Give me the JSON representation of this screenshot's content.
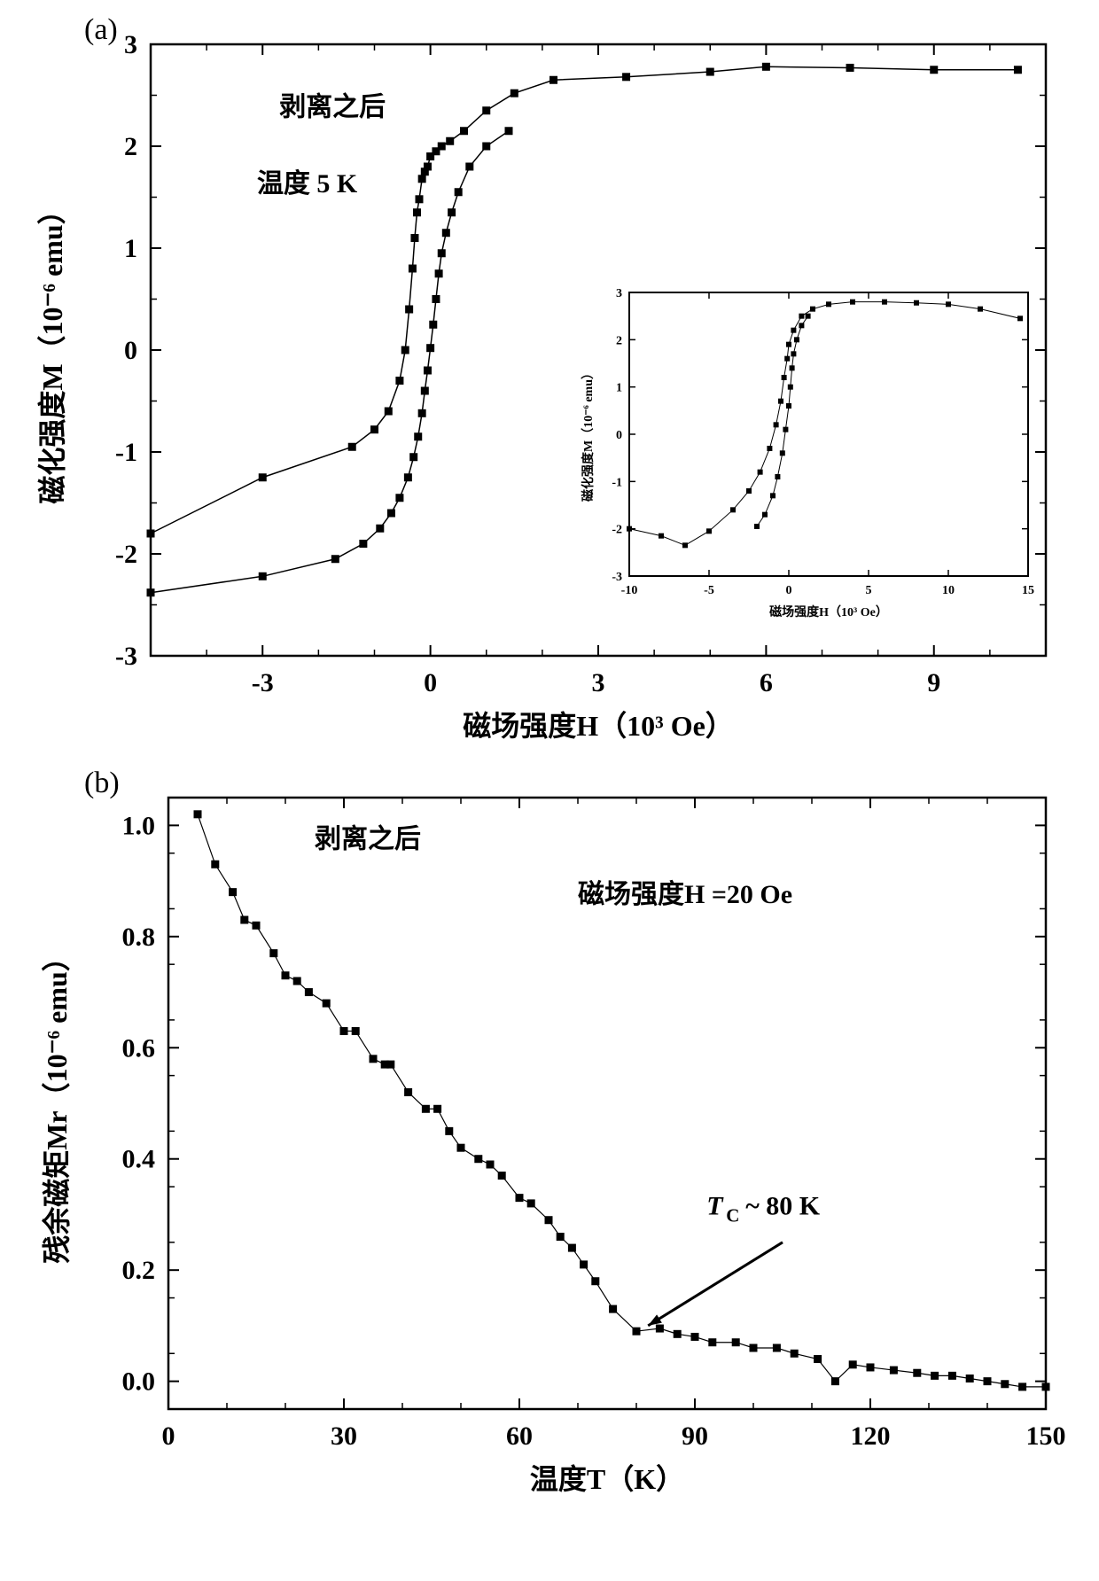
{
  "panel_a": {
    "label": "(a)",
    "type": "scatter-line",
    "xlabel": "磁场强度H（10³ Oe）",
    "ylabel": "磁化强度M（10⁻⁶ emu）",
    "label_fontsize": 32,
    "tick_fontsize": 30,
    "annotation1": "剥离之后",
    "annotation2": "温度 5 K",
    "annotation_fontsize": 30,
    "xlim": [
      -5,
      11
    ],
    "ylim": [
      -3,
      3
    ],
    "xticks": [
      -3,
      0,
      3,
      6,
      9
    ],
    "yticks": [
      -3,
      -2,
      -1,
      0,
      1,
      2,
      3
    ],
    "background_color": "#ffffff",
    "axis_color": "#000000",
    "marker_color": "#000000",
    "line_color": "#000000",
    "marker_size": 9,
    "line_width": 1.5,
    "axis_width": 2.5,
    "series": [
      {
        "name": "branch1",
        "points": [
          [
            -5,
            -1.8
          ],
          [
            -3,
            -1.25
          ],
          [
            -1.4,
            -0.95
          ],
          [
            -1.0,
            -0.78
          ],
          [
            -0.75,
            -0.6
          ],
          [
            -0.55,
            -0.3
          ],
          [
            -0.45,
            0.0
          ],
          [
            -0.38,
            0.4
          ],
          [
            -0.32,
            0.8
          ],
          [
            -0.28,
            1.1
          ],
          [
            -0.24,
            1.35
          ],
          [
            -0.2,
            1.48
          ],
          [
            -0.15,
            1.68
          ],
          [
            -0.1,
            1.75
          ],
          [
            -0.05,
            1.8
          ],
          [
            0.0,
            1.9
          ],
          [
            0.1,
            1.95
          ],
          [
            0.2,
            2.0
          ],
          [
            0.35,
            2.05
          ],
          [
            0.6,
            2.15
          ],
          [
            1.0,
            2.35
          ],
          [
            1.5,
            2.52
          ],
          [
            2.2,
            2.65
          ],
          [
            3.5,
            2.68
          ],
          [
            5.0,
            2.73
          ],
          [
            6.0,
            2.78
          ],
          [
            7.5,
            2.77
          ],
          [
            9.0,
            2.75
          ],
          [
            10.5,
            2.75
          ]
        ]
      },
      {
        "name": "branch2",
        "points": [
          [
            -5,
            -2.38
          ],
          [
            -3,
            -2.22
          ],
          [
            -1.7,
            -2.05
          ],
          [
            -1.2,
            -1.9
          ],
          [
            -0.9,
            -1.75
          ],
          [
            -0.7,
            -1.6
          ],
          [
            -0.55,
            -1.45
          ],
          [
            -0.4,
            -1.25
          ],
          [
            -0.3,
            -1.05
          ],
          [
            -0.22,
            -0.85
          ],
          [
            -0.15,
            -0.62
          ],
          [
            -0.1,
            -0.4
          ],
          [
            -0.05,
            -0.2
          ],
          [
            0.0,
            0.02
          ],
          [
            0.05,
            0.25
          ],
          [
            0.1,
            0.5
          ],
          [
            0.15,
            0.75
          ],
          [
            0.2,
            0.95
          ],
          [
            0.28,
            1.15
          ],
          [
            0.38,
            1.35
          ],
          [
            0.5,
            1.55
          ],
          [
            0.7,
            1.8
          ],
          [
            1.0,
            2.0
          ],
          [
            1.4,
            2.15
          ]
        ]
      }
    ],
    "inset": {
      "xlabel": "磁场强度H（10³ Oe）",
      "ylabel": "磁化强度M（10⁻⁶ emu）",
      "label_fontsize": 14,
      "tick_fontsize": 14,
      "xlim": [
        -10,
        15
      ],
      "ylim": [
        -3,
        3
      ],
      "xticks": [
        -10,
        -5,
        0,
        5,
        10,
        15
      ],
      "yticks": [
        -3,
        -2,
        -1,
        0,
        1,
        2,
        3
      ],
      "marker_size": 6,
      "line_width": 1,
      "axis_width": 2,
      "series": [
        {
          "name": "b1",
          "points": [
            [
              -10,
              -2.0
            ],
            [
              -8,
              -2.15
            ],
            [
              -6.5,
              -2.35
            ],
            [
              -5,
              -2.05
            ],
            [
              -3.5,
              -1.6
            ],
            [
              -2.5,
              -1.2
            ],
            [
              -1.8,
              -0.8
            ],
            [
              -1.2,
              -0.3
            ],
            [
              -0.8,
              0.2
            ],
            [
              -0.5,
              0.7
            ],
            [
              -0.3,
              1.2
            ],
            [
              -0.1,
              1.6
            ],
            [
              0.0,
              1.9
            ],
            [
              0.3,
              2.2
            ],
            [
              0.8,
              2.5
            ],
            [
              1.5,
              2.65
            ],
            [
              2.5,
              2.75
            ],
            [
              4.0,
              2.8
            ],
            [
              6.0,
              2.8
            ],
            [
              8.0,
              2.78
            ],
            [
              10.0,
              2.75
            ],
            [
              12.0,
              2.65
            ],
            [
              14.5,
              2.45
            ]
          ]
        },
        {
          "name": "b2",
          "points": [
            [
              -2.0,
              -1.95
            ],
            [
              -1.5,
              -1.7
            ],
            [
              -1.0,
              -1.3
            ],
            [
              -0.7,
              -0.9
            ],
            [
              -0.4,
              -0.4
            ],
            [
              -0.2,
              0.1
            ],
            [
              0.0,
              0.6
            ],
            [
              0.1,
              1.0
            ],
            [
              0.2,
              1.4
            ],
            [
              0.3,
              1.7
            ],
            [
              0.5,
              2.0
            ],
            [
              0.8,
              2.3
            ],
            [
              1.2,
              2.5
            ]
          ]
        }
      ]
    }
  },
  "panel_b": {
    "label": "(b)",
    "type": "scatter-line",
    "xlabel": "温度T（K）",
    "ylabel": "残余磁矩Mr（10⁻⁶ emu）",
    "label_fontsize": 32,
    "tick_fontsize": 30,
    "annotation1": "剥离之后",
    "annotation2": "磁场强度H =20 Oe",
    "annotation3": "Tc ~ 80 K",
    "annotation_fontsize": 30,
    "xlim": [
      0,
      150
    ],
    "ylim": [
      -0.05,
      1.05
    ],
    "xticks": [
      0,
      30,
      60,
      90,
      120,
      150
    ],
    "yticks": [
      0.0,
      0.2,
      0.4,
      0.6,
      0.8,
      1.0
    ],
    "background_color": "#ffffff",
    "axis_color": "#000000",
    "marker_color": "#000000",
    "line_color": "#000000",
    "marker_size": 9,
    "line_width": 1.2,
    "axis_width": 2.5,
    "arrow_from": [
      105,
      0.25
    ],
    "arrow_to": [
      82,
      0.1
    ],
    "points": [
      [
        5,
        1.02
      ],
      [
        8,
        0.93
      ],
      [
        11,
        0.88
      ],
      [
        13,
        0.83
      ],
      [
        15,
        0.82
      ],
      [
        18,
        0.77
      ],
      [
        20,
        0.73
      ],
      [
        22,
        0.72
      ],
      [
        24,
        0.7
      ],
      [
        27,
        0.68
      ],
      [
        30,
        0.63
      ],
      [
        32,
        0.63
      ],
      [
        35,
        0.58
      ],
      [
        37,
        0.57
      ],
      [
        38,
        0.57
      ],
      [
        41,
        0.52
      ],
      [
        44,
        0.49
      ],
      [
        46,
        0.49
      ],
      [
        48,
        0.45
      ],
      [
        50,
        0.42
      ],
      [
        53,
        0.4
      ],
      [
        55,
        0.39
      ],
      [
        57,
        0.37
      ],
      [
        60,
        0.33
      ],
      [
        62,
        0.32
      ],
      [
        65,
        0.29
      ],
      [
        67,
        0.26
      ],
      [
        69,
        0.24
      ],
      [
        71,
        0.21
      ],
      [
        73,
        0.18
      ],
      [
        76,
        0.13
      ],
      [
        80,
        0.09
      ],
      [
        84,
        0.095
      ],
      [
        87,
        0.085
      ],
      [
        90,
        0.08
      ],
      [
        93,
        0.07
      ],
      [
        97,
        0.07
      ],
      [
        100,
        0.06
      ],
      [
        104,
        0.06
      ],
      [
        107,
        0.05
      ],
      [
        111,
        0.04
      ],
      [
        114,
        0.0
      ],
      [
        117,
        0.03
      ],
      [
        120,
        0.025
      ],
      [
        124,
        0.02
      ],
      [
        128,
        0.015
      ],
      [
        131,
        0.01
      ],
      [
        134,
        0.01
      ],
      [
        137,
        0.005
      ],
      [
        140,
        0.0
      ],
      [
        143,
        -0.005
      ],
      [
        146,
        -0.01
      ],
      [
        150,
        -0.01
      ]
    ]
  }
}
